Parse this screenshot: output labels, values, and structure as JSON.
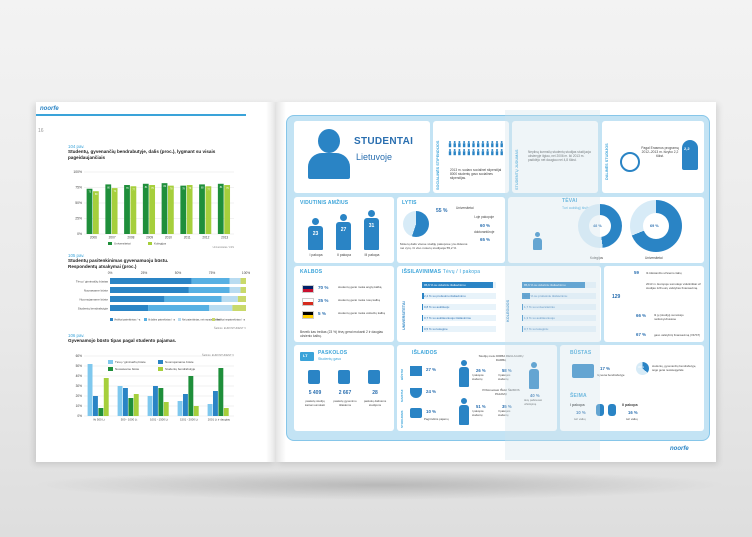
{
  "left": {
    "logo": "noorfe",
    "page_number": "16",
    "chart1": {
      "label1": "104 pav.",
      "label2": "Studentų, gyvenančių bendrabutyje, dalis (proc.), lygmant su visais pagei…",
      "title_line2": "(proc.), lygmant su visais pageidaujančiais",
      "legend": [
        "Universitetai",
        "Kolegijos"
      ],
      "source": "Universitetai / LSS"
    },
    "chart2": {
      "label1": "105 pav.",
      "label2": "Studentų pasitenkinimas gyvenamuoju būstu.",
      "label3": "Respondentų atsakymai (proc.)",
      "ticks": [
        "0%",
        "25%",
        "50%",
        "75%",
        "100%"
      ],
      "rows": [
        "Tėvų / giminaičių būstas",
        "Nuosavame būste",
        "Nuomojamame būste",
        "Studentų bendrabutyje"
      ],
      "legend": [
        "Visiškai patenkintas / -a",
        "Iš dalies patenkintas / -a",
        "Nei patenkintas, nei nepatenkintas",
        "Visiškai nepatenkintas / -a"
      ],
      "source": "Šaltinis: EUROSTUDENT V"
    },
    "chart3": {
      "label1": "106 pav.",
      "label2": "Gyvenamojo būsto tipas pagal studento pajamas.",
      "legend": [
        "Tėvų / giminaičių būste",
        "Nuomojamame būste",
        "Nuosavame būste",
        "Studentų bendrabutyje"
      ],
      "xticks": [
        "Iki 500 Lt",
        "500 - 1000 Lt",
        "1001 - 1500 Lt",
        "1501 - 2000 Lt",
        "2001 Lt ir daugiau"
      ],
      "source": "Šaltinis: EUROSTUDENT V"
    }
  },
  "chart_data": [
    {
      "type": "bar",
      "title": "Studentų, gyvenančių bendrabutyje, dalis (proc.), lygmant su visais pageidaujančiais",
      "categories": [
        "2006",
        "2007",
        "2008",
        "2009",
        "2010",
        "2011",
        "2012",
        "2013"
      ],
      "series": [
        {
          "name": "Universitetai",
          "values": [
            73,
            80,
            79,
            81,
            82,
            78,
            80,
            81
          ]
        },
        {
          "name": "Kolegijos",
          "values": [
            69,
            74,
            77,
            79,
            78,
            79,
            77,
            79
          ]
        }
      ],
      "ylim": [
        0,
        100
      ],
      "yticks": [
        "100%",
        "75%",
        "50%",
        "25%",
        "0%"
      ]
    },
    {
      "type": "bar",
      "title": "Studentų pasitenkinimas gyvenamuoju būstu. Respondentų atsakymai (proc.)",
      "orientation": "horizontal-stacked",
      "categories": [
        "Tėvų / giminaičių būstas",
        "Nuosavame būste",
        "Nuomojamame būste",
        "Studentų bendrabutyje"
      ],
      "series": [
        {
          "name": "Visiškai patenkintas / -a",
          "values": [
            60,
            58,
            40,
            28
          ]
        },
        {
          "name": "Iš dalies patenkintas / -a",
          "values": [
            28,
            30,
            42,
            45
          ]
        },
        {
          "name": "Nei patenkintas, nei nepatenkintas",
          "values": [
            8,
            8,
            12,
            17
          ]
        },
        {
          "name": "Visiškai nepatenkintas / -a",
          "values": [
            4,
            4,
            6,
            10
          ]
        }
      ],
      "xlim": [
        0,
        100
      ]
    },
    {
      "type": "bar",
      "title": "Gyvenamojo būsto tipas pagal studento pajamas.",
      "categories": [
        "Iki 500 Lt",
        "500 - 1000 Lt",
        "1001 - 1500 Lt",
        "1501 - 2000 Lt",
        "2001 Lt ir daugiau"
      ],
      "series": [
        {
          "name": "Tėvų / giminaičių būste",
          "values": [
            52,
            30,
            20,
            15,
            12
          ]
        },
        {
          "name": "Nuomojamame būste",
          "values": [
            20,
            28,
            30,
            22,
            25
          ]
        },
        {
          "name": "Nuosavame būste",
          "values": [
            8,
            18,
            28,
            40,
            48
          ]
        },
        {
          "name": "Studentų bendrabutyje",
          "values": [
            38,
            22,
            14,
            10,
            8
          ]
        }
      ],
      "ylim": [
        0,
        60
      ],
      "yticks": [
        "60%",
        "50%",
        "40%",
        "30%",
        "20%",
        "10%",
        "0%"
      ]
    }
  ],
  "right": {
    "title1": "STUDENTAI",
    "title2": "Lietuvoje",
    "social": {
      "header": "SOCIALINĖS STIPENDIJOS",
      "text": "2013 m. sudaro socialinei stipendijai 8000 studentų gavo socialines stipendijas."
    },
    "mobility": {
      "header": "STUDENTŲ JUDUMAS",
      "text": "Nepilną kurmsilų studentų studijas studijuoja užsienyje ilgiau, nei 2006 m. iki 2013 m. padidėjo net daugiau nei 4,8 tūkst."
    },
    "parttime": {
      "header": "DALINĖS STUDIJOS",
      "text": "Pagal Erasmus programą 2012–2013 m. išvyko 2,2 tūkst.",
      "badge": "2,2"
    },
    "age": {
      "header": "VIDUTINIS AMŽIUS",
      "values": [
        "23",
        "27",
        "31"
      ],
      "labels": [
        "I pakopa",
        "II pakopa",
        "III pakopa"
      ]
    },
    "gender": {
      "header": "LYTIS",
      "pct_female": "55 %",
      "pct_a": "60 %",
      "pct_b": "65 %",
      "lbl_a": "I-oje pakopoje",
      "lbl_b": "doktorantūroje",
      "side": "Universitetai",
      "note": "Moterų dalis visose studijų pakopose yra didesnė nei vyrų. Iš viso moterų studijuoja 55,2 %"
    },
    "parents": {
      "header": "TĖVAI",
      "sub": "Turi aukštąjį išsilavinimą",
      "pct1": "48 %",
      "pct2": "69 %",
      "lbl1": "Kolegijos",
      "lbl2": "Universitetai"
    },
    "languages": {
      "header": "KALBOS",
      "rows": [
        {
          "pct": "70 %",
          "text": "studentų gerai moka anglų kalbą"
        },
        {
          "pct": "25 %",
          "text": "studentų gerai moka rusų kalbą"
        },
        {
          "pct": "5 %",
          "text": "studentų gerai moka vokiečių kalbą"
        }
      ],
      "note": "Beveik kas trečias (23 %) tėvų gerai mokanti 2 ir daugiau užsienio kalbų."
    },
    "education": {
      "header": "IŠSILAVINIMAS",
      "sub": "Tėvų / I pakopa",
      "univ_label": "UNIVERSITETAI",
      "col_label": "KOLEGIJOS",
      "univ_rows": [
        {
          "pct": "95,6 %",
          "text": "su viduriniu išsilavinimu"
        },
        {
          "pct": "2,4 %",
          "text": "su profesiniu išsilavinimu"
        },
        {
          "pct": "0,8 %",
          "text": "su aukštuoju"
        },
        {
          "pct": "0,7 %",
          "text": "su aukštesniuoju išsilavinimu"
        },
        {
          "pct": "0,5 %",
          "text": "su kolegine"
        }
      ],
      "col_rows": [
        {
          "pct": "85,6 %",
          "text": "su viduriniu išsilavinimu"
        },
        {
          "pct": "10,7 %",
          "text": "su profesiniu išsilavinimu"
        },
        {
          "pct": "1,7 %",
          "text": "su universitetiniu"
        },
        {
          "pct": "1,3 %",
          "text": "su aukštesniuoju"
        },
        {
          "pct": "0,7 %",
          "text": "su koleginiu"
        }
      ]
    },
    "financing": {
      "n1": "59",
      "t1": "Iš tūkstančio užsienio šalių",
      "n2": "129",
      "t2": "2013 m. Europoje sumokėjo vidutiniškai už studijas 129 eurų valstybės finansavimą.",
      "p1": "66 %",
      "t3": "Iš jų (studijų) sumokėjo neišsivysčiusiose",
      "p2": "67 %",
      "t4": "gavo valstybinį finansavimą (VF/ST)"
    },
    "loans": {
      "header": "PASKOLOS",
      "sub": "Studentų gavo",
      "currency": "LT",
      "values": [
        "5 409",
        "2 667",
        "28"
      ],
      "labels": [
        "paskolų studijų kainai sumokėti",
        "paskolų gyvenimo išlaidoms",
        "paskolų dalinėms studijoms"
      ]
    },
    "expenses": {
      "header": "IŠLAIDOS",
      "side1": "BŪSTUI",
      "side2": "MAISTUI",
      "side3": "STUDIJOMS",
      "pct1": "27 %",
      "pct2": "24 %",
      "pct3": "10 %",
      "caption3": "Pagrindinis pajamų",
      "work_title": "Studijų metu DIRBA REGULIARŲ DARBĄ",
      "w1": "26 %",
      "w2": "58 %",
      "w1l": "I pakopos studentų",
      "w2l": "II pakopos studentų",
      "sup_title": "Pribūnuotasi IŠLEI ŠEIMOS PAJAMŲ",
      "s1": "51 %",
      "s2": "35 %",
      "s1l": "I pakopos studentų",
      "s2l": "II pakopos studentų",
      "p40": "40 %",
      "p40l": "tėvų pabūvusio užsirūpinę"
    },
    "housing": {
      "header": "BŪSTAS",
      "pct": "17 %",
      "text": "Gyvena bendrabutyje",
      "pct2": "36 %",
      "text2": "studentų, gyvenančių bendrabutyje, teigė gerai nusisteigę/lėlė"
    },
    "family": {
      "header": "ŠEIMA",
      "l1": "I pakopa",
      "v1": "10 %",
      "t1": "turi vaikų",
      "l2": "II pakopa",
      "v2": "16 %",
      "t2": "turi vaikų"
    },
    "logo": "noorfe"
  }
}
